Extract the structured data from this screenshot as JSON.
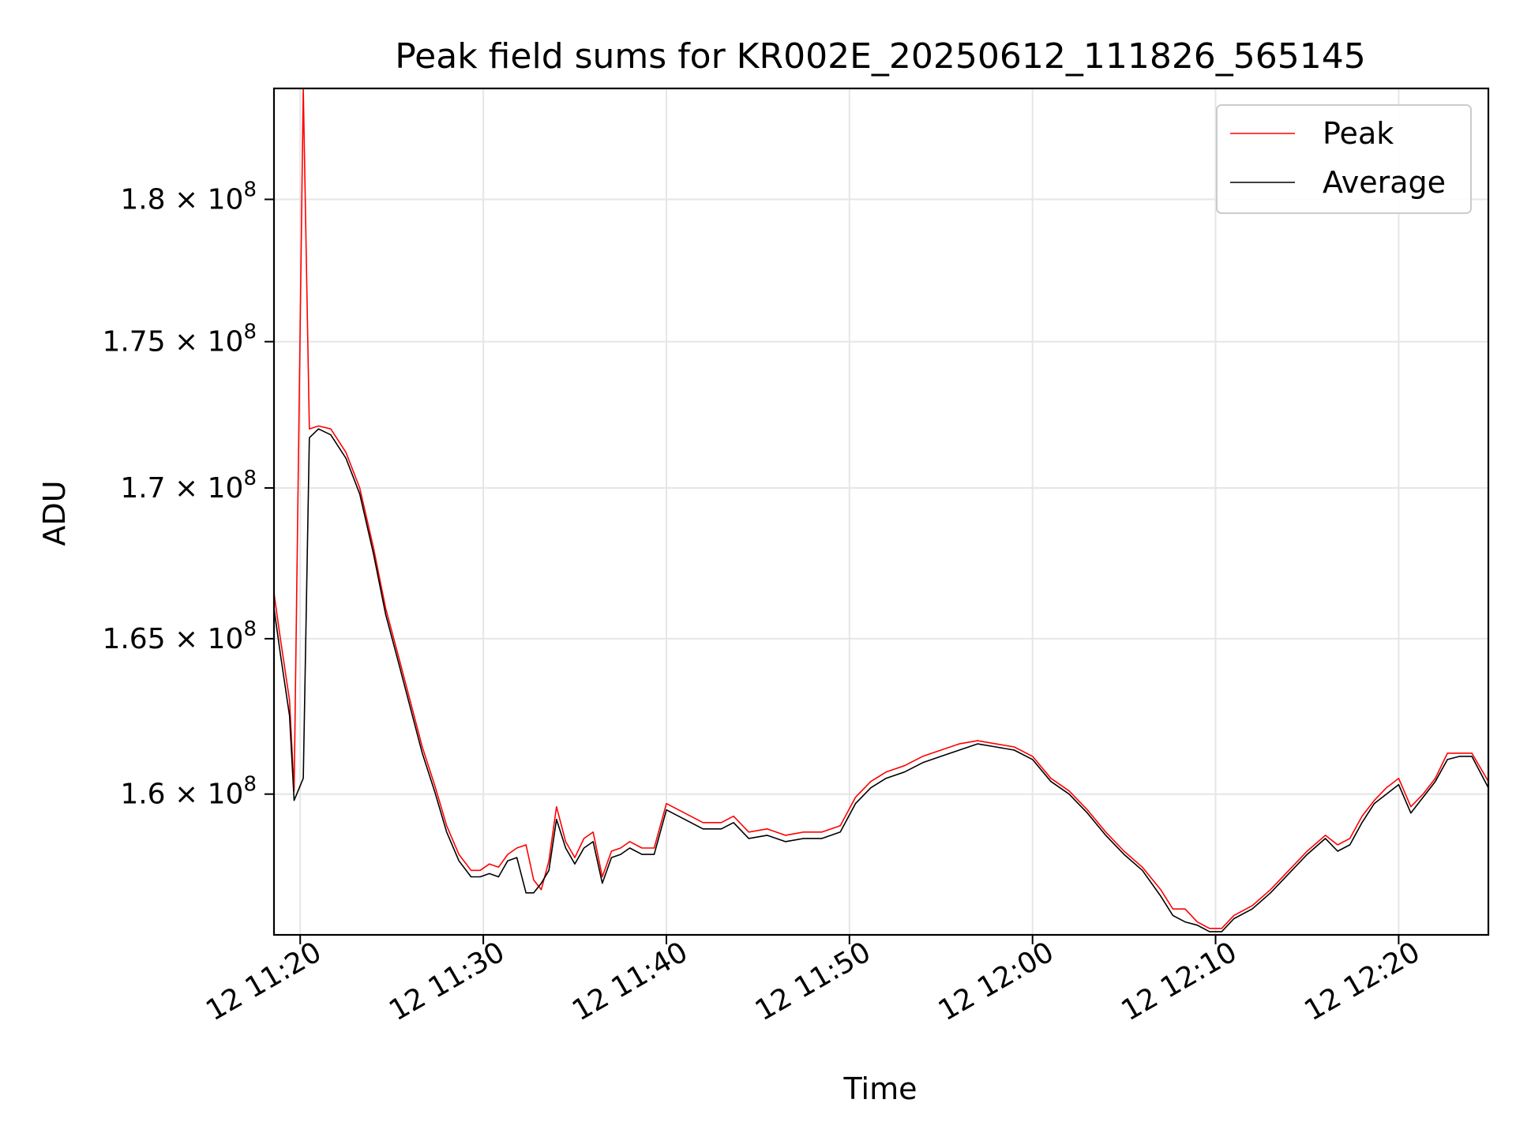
{
  "chart_data": {
    "type": "line",
    "title": "Peak field sums for KR002E_20250612_111826_565145",
    "xlabel": "Time",
    "ylabel": "ADU",
    "y_scale": "log",
    "xlim": [
      "2025-06-12 11:18:34",
      "2025-06-12 12:24:54"
    ],
    "ylim": [
      155600000,
      184000000
    ],
    "x_ticks": [
      {
        "value": "2025-06-12 11:20",
        "label": "12 11:20"
      },
      {
        "value": "2025-06-12 11:30",
        "label": "12 11:30"
      },
      {
        "value": "2025-06-12 11:40",
        "label": "12 11:40"
      },
      {
        "value": "2025-06-12 11:50",
        "label": "12 11:50"
      },
      {
        "value": "2025-06-12 12:00",
        "label": "12 12:00"
      },
      {
        "value": "2025-06-12 12:10",
        "label": "12 12:10"
      },
      {
        "value": "2025-06-12 12:20",
        "label": "12 12:20"
      }
    ],
    "y_ticks": [
      {
        "value": 160000000,
        "base": "1.6",
        "exp": "8"
      },
      {
        "value": 165000000,
        "base": "1.65",
        "exp": "8"
      },
      {
        "value": 170000000,
        "base": "1.7",
        "exp": "8"
      },
      {
        "value": 175000000,
        "base": "1.75",
        "exp": "8"
      },
      {
        "value": 180000000,
        "base": "1.8",
        "exp": "8"
      }
    ],
    "grid": true,
    "legend_position": "top-right",
    "x": [
      "11:18:34",
      "11:18:55",
      "11:19:25",
      "11:19:40",
      "11:20:10",
      "11:20:30",
      "11:21:00",
      "11:21:40",
      "11:22:30",
      "11:23:15",
      "11:24:00",
      "11:24:40",
      "11:25:20",
      "11:26:00",
      "11:26:40",
      "11:27:20",
      "11:28:00",
      "11:28:40",
      "11:29:20",
      "11:29:50",
      "11:30:20",
      "11:30:50",
      "11:31:20",
      "11:31:50",
      "11:32:20",
      "11:32:45",
      "11:33:10",
      "11:33:35",
      "11:34:00",
      "11:34:30",
      "11:35:00",
      "11:35:30",
      "11:36:00",
      "11:36:30",
      "11:37:00",
      "11:37:30",
      "11:38:00",
      "11:38:40",
      "11:39:20",
      "11:40:00",
      "11:41:00",
      "11:42:00",
      "11:43:00",
      "11:43:40",
      "11:44:30",
      "11:45:30",
      "11:46:30",
      "11:47:30",
      "11:48:30",
      "11:49:30",
      "11:50:20",
      "11:51:10",
      "11:52:00",
      "11:53:00",
      "11:54:00",
      "11:55:00",
      "11:56:00",
      "11:57:00",
      "11:58:00",
      "11:59:00",
      "12:00:00",
      "12:01:00",
      "12:02:00",
      "12:03:00",
      "12:04:00",
      "12:05:00",
      "12:06:00",
      "12:07:00",
      "12:07:40",
      "12:08:20",
      "12:09:00",
      "12:09:40",
      "12:10:20",
      "12:11:00",
      "12:12:00",
      "12:13:00",
      "12:14:00",
      "12:15:00",
      "12:16:00",
      "12:16:40",
      "12:17:20",
      "12:18:00",
      "12:18:40",
      "12:19:20",
      "12:20:00",
      "12:20:40",
      "12:21:20",
      "12:22:00",
      "12:22:40",
      "12:23:20",
      "12:24:00",
      "12:24:54"
    ],
    "series": [
      {
        "name": "Peak",
        "color": "#ff0000",
        "values": [
          166500000,
          165000000,
          163000000,
          160100000,
          184000000,
          172000000,
          172100000,
          172000000,
          171200000,
          170000000,
          168000000,
          166000000,
          164500000,
          163000000,
          161500000,
          160300000,
          159000000,
          158100000,
          157600000,
          157600000,
          157800000,
          157700000,
          158100000,
          158300000,
          158400000,
          157300000,
          157000000,
          157900000,
          159600000,
          158500000,
          158000000,
          158600000,
          158800000,
          157400000,
          158200000,
          158300000,
          158500000,
          158300000,
          158300000,
          159700000,
          159400000,
          159100000,
          159100000,
          159300000,
          158800000,
          158900000,
          158700000,
          158800000,
          158800000,
          159000000,
          159900000,
          160400000,
          160700000,
          160900000,
          161200000,
          161400000,
          161600000,
          161700000,
          161600000,
          161500000,
          161200000,
          160500000,
          160100000,
          159500000,
          158800000,
          158200000,
          157700000,
          157000000,
          156400000,
          156400000,
          156000000,
          155800000,
          155800000,
          156200000,
          156500000,
          157000000,
          157600000,
          158200000,
          158700000,
          158400000,
          158600000,
          159300000,
          159800000,
          160200000,
          160500000,
          159600000,
          160000000,
          160500000,
          161300000,
          161300000,
          161300000,
          160400000
        ]
      },
      {
        "name": "Average",
        "color": "#000000",
        "values": [
          166000000,
          164500000,
          162500000,
          159800000,
          160500000,
          171700000,
          172000000,
          171800000,
          171000000,
          169800000,
          167800000,
          165800000,
          164300000,
          162800000,
          161300000,
          160100000,
          158800000,
          157900000,
          157400000,
          157400000,
          157500000,
          157400000,
          157900000,
          158000000,
          156900000,
          156900000,
          157200000,
          157600000,
          159200000,
          158300000,
          157800000,
          158300000,
          158500000,
          157200000,
          158000000,
          158100000,
          158300000,
          158100000,
          158100000,
          159500000,
          159200000,
          158900000,
          158900000,
          159100000,
          158600000,
          158700000,
          158500000,
          158600000,
          158600000,
          158800000,
          159700000,
          160200000,
          160500000,
          160700000,
          161000000,
          161200000,
          161400000,
          161600000,
          161500000,
          161400000,
          161100000,
          160400000,
          160000000,
          159400000,
          158700000,
          158100000,
          157600000,
          156800000,
          156200000,
          156000000,
          155900000,
          155700000,
          155700000,
          156100000,
          156400000,
          156900000,
          157500000,
          158100000,
          158600000,
          158200000,
          158400000,
          159100000,
          159700000,
          160000000,
          160300000,
          159400000,
          159900000,
          160400000,
          161100000,
          161200000,
          161200000,
          160200000
        ]
      }
    ]
  }
}
